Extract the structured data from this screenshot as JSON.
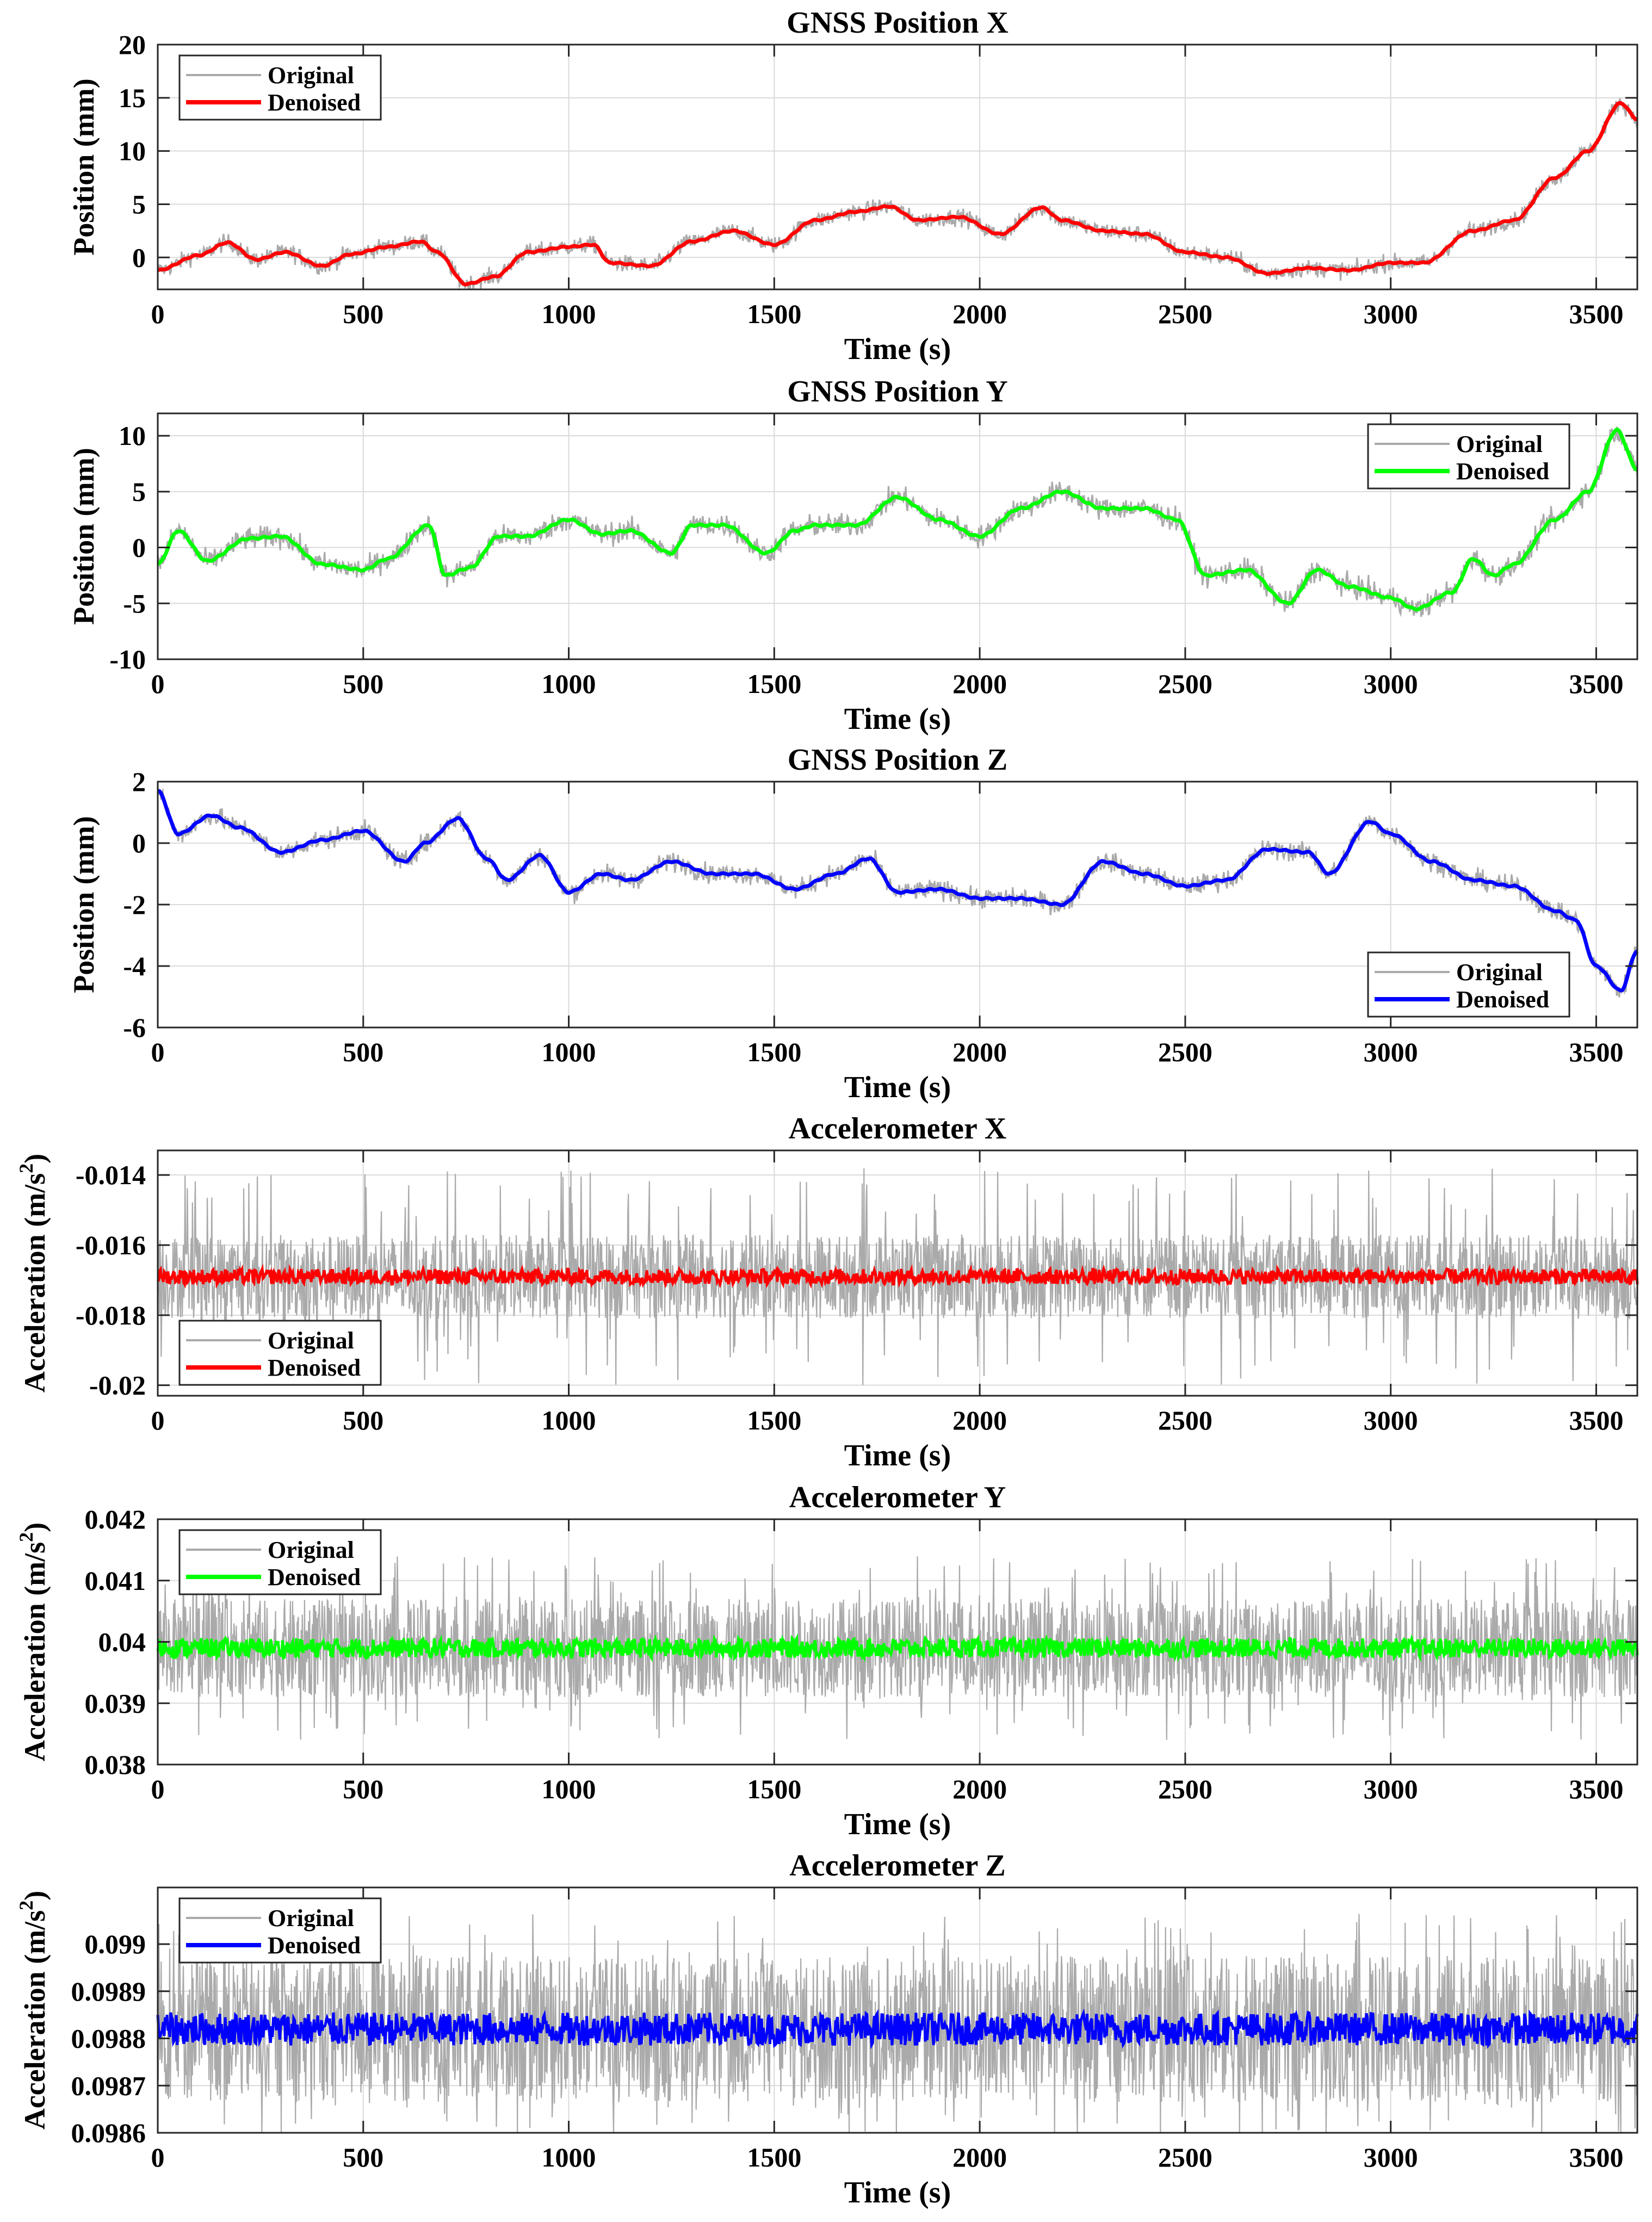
{
  "chart_data": [
    {
      "type": "line",
      "title": "GNSS Position X",
      "xlabel": "Time (s)",
      "ylabel": "Position (mm)",
      "ylabel_sup": "",
      "ylabel_tail": "",
      "xlim": [
        0,
        3600
      ],
      "ylim": [
        -3,
        20
      ],
      "xticks": [
        0,
        500,
        1000,
        1500,
        2000,
        2500,
        3000,
        3500
      ],
      "xtick_labels": [
        "0",
        "500",
        "1000",
        "1500",
        "2000",
        "2500",
        "3000",
        "3500"
      ],
      "yticks": [
        0,
        5,
        10,
        15,
        20
      ],
      "ytick_labels": [
        "0",
        "5",
        "10",
        "15",
        "20"
      ],
      "grid": true,
      "legend": "top-left",
      "kind": "position",
      "noise": 0.7,
      "series": [
        {
          "name": "Original",
          "color": "#aaaaaa",
          "x": [
            0,
            100,
            170,
            240,
            310,
            400,
            470,
            560,
            640,
            680,
            750,
            820,
            900,
            1000,
            1060,
            1100,
            1200,
            1300,
            1400,
            1500,
            1600,
            1700,
            1780,
            1850,
            1950,
            2050,
            2150,
            2200,
            2300,
            2400,
            2500,
            2600,
            2700,
            2800,
            2900,
            3000,
            3080,
            3200,
            3300,
            3400,
            3480,
            3560,
            3600
          ],
          "y": [
            -1.2,
            0.2,
            1.4,
            -0.2,
            0.5,
            -0.8,
            0.3,
            1.0,
            1.5,
            0.5,
            -2.5,
            -1.8,
            0.5,
            1.0,
            1.2,
            -0.5,
            -0.8,
            1.5,
            2.5,
            1.2,
            3.5,
            4.3,
            4.8,
            3.5,
            3.8,
            2.2,
            4.7,
            3.5,
            2.5,
            2.2,
            0.5,
            0.0,
            -1.5,
            -1.0,
            -1.2,
            -0.5,
            -0.5,
            2.5,
            3.5,
            7.5,
            10.0,
            14.5,
            13.0
          ]
        },
        {
          "name": "Denoised",
          "color": "#ff0000",
          "smooth": true
        }
      ]
    },
    {
      "type": "line",
      "title": "GNSS Position Y",
      "xlabel": "Time (s)",
      "ylabel": "Position (mm)",
      "ylabel_sup": "",
      "ylabel_tail": "",
      "xlim": [
        0,
        3600
      ],
      "ylim": [
        -10,
        12
      ],
      "xticks": [
        0,
        500,
        1000,
        1500,
        2000,
        2500,
        3000,
        3500
      ],
      "xtick_labels": [
        "0",
        "500",
        "1000",
        "1500",
        "2000",
        "2500",
        "3000",
        "3500"
      ],
      "yticks": [
        -10,
        -5,
        0,
        5,
        10
      ],
      "ytick_labels": [
        "-10",
        "-5",
        "0",
        "5",
        "10"
      ],
      "grid": true,
      "legend": "top-right",
      "kind": "position",
      "noise": 0.9,
      "series": [
        {
          "name": "Original",
          "color": "#aaaaaa",
          "x": [
            0,
            50,
            120,
            220,
            300,
            400,
            500,
            560,
            660,
            700,
            760,
            830,
            900,
            1000,
            1080,
            1150,
            1250,
            1300,
            1380,
            1480,
            1550,
            1600,
            1700,
            1800,
            1900,
            2000,
            2100,
            2200,
            2300,
            2400,
            2480,
            2550,
            2650,
            2750,
            2820,
            2900,
            3000,
            3060,
            3150,
            3200,
            3250,
            3300,
            3400,
            3480,
            3550,
            3600
          ],
          "y": [
            -1.5,
            1.5,
            -1.2,
            0.8,
            1.0,
            -1.5,
            -2.0,
            -1.0,
            2.0,
            -2.5,
            -1.8,
            1.0,
            1.0,
            2.5,
            1.2,
            1.5,
            -0.5,
            2.0,
            2.0,
            -0.5,
            1.5,
            2.0,
            2.0,
            4.5,
            2.5,
            1.0,
            3.5,
            5.0,
            3.5,
            3.5,
            2.5,
            -2.5,
            -2.0,
            -5.0,
            -2.0,
            -3.5,
            -4.5,
            -5.5,
            -4.0,
            -1.0,
            -2.5,
            -1.5,
            2.5,
            5.0,
            10.5,
            7.0
          ]
        },
        {
          "name": "Denoised",
          "color": "#00ff00",
          "smooth": true
        }
      ]
    },
    {
      "type": "line",
      "title": "GNSS Position Z",
      "xlabel": "Time (s)",
      "ylabel": "Position (mm)",
      "ylabel_sup": "",
      "ylabel_tail": "",
      "xlim": [
        0,
        3600
      ],
      "ylim": [
        -6,
        2
      ],
      "xticks": [
        0,
        500,
        1000,
        1500,
        2000,
        2500,
        3000,
        3500
      ],
      "xtick_labels": [
        "0",
        "500",
        "1000",
        "1500",
        "2000",
        "2500",
        "3000",
        "3500"
      ],
      "yticks": [
        -6,
        -4,
        -2,
        0,
        2
      ],
      "ytick_labels": [
        "-6",
        "-4",
        "-2",
        "0",
        "2"
      ],
      "grid": true,
      "legend": "bottom-right",
      "kind": "position",
      "noise": 0.28,
      "series": [
        {
          "name": "Original",
          "color": "#aaaaaa",
          "x": [
            0,
            50,
            130,
            200,
            300,
            400,
            500,
            600,
            650,
            730,
            800,
            850,
            930,
            1000,
            1080,
            1150,
            1250,
            1350,
            1450,
            1550,
            1650,
            1730,
            1800,
            1900,
            2000,
            2100,
            2200,
            2300,
            2400,
            2500,
            2600,
            2700,
            2800,
            2850,
            2950,
            3000,
            3100,
            3200,
            3300,
            3400,
            3450,
            3500,
            3560,
            3600
          ],
          "y": [
            1.7,
            0.3,
            0.9,
            0.5,
            -0.3,
            0.1,
            0.4,
            -0.6,
            0.0,
            0.8,
            -0.5,
            -1.2,
            -0.4,
            -1.6,
            -1.0,
            -1.2,
            -0.6,
            -1.0,
            -1.0,
            -1.5,
            -1.0,
            -0.5,
            -1.6,
            -1.5,
            -1.8,
            -1.8,
            -2.0,
            -0.6,
            -1.0,
            -1.4,
            -1.2,
            -0.2,
            -0.3,
            -1.0,
            0.7,
            0.3,
            -0.6,
            -1.2,
            -1.4,
            -2.2,
            -2.5,
            -4.0,
            -4.8,
            -3.5
          ]
        },
        {
          "name": "Denoised",
          "color": "#0000ff",
          "smooth": true
        }
      ]
    },
    {
      "type": "line",
      "title": "Accelerometer X",
      "xlabel": "Time (s)",
      "ylabel": "Acceleration (m/s",
      "ylabel_sup": "2",
      "ylabel_tail": ")",
      "xlim": [
        0,
        3600
      ],
      "ylim": [
        -0.0203,
        -0.0133
      ],
      "xticks": [
        0,
        500,
        1000,
        1500,
        2000,
        2500,
        3000,
        3500
      ],
      "xtick_labels": [
        "0",
        "500",
        "1000",
        "1500",
        "2000",
        "2500",
        "3000",
        "3500"
      ],
      "yticks": [
        -0.02,
        -0.018,
        -0.016,
        -0.014
      ],
      "ytick_labels": [
        "-0.02",
        "-0.018",
        "-0.016",
        "-0.014"
      ],
      "grid": true,
      "legend": "bottom-left",
      "kind": "noise",
      "series": [
        {
          "name": "Original",
          "color": "#aaaaaa",
          "mean": -0.0169,
          "core": 0.0012,
          "spike": 0.0031
        },
        {
          "name": "Denoised",
          "color": "#ff0000",
          "mean": -0.0169,
          "core": 0.00022
        }
      ]
    },
    {
      "type": "line",
      "title": "Accelerometer Y",
      "xlabel": "Time (s)",
      "ylabel": "Acceleration (m/s",
      "ylabel_sup": "2",
      "ylabel_tail": ")",
      "xlim": [
        0,
        3600
      ],
      "ylim": [
        0.038,
        0.042
      ],
      "xticks": [
        0,
        500,
        1000,
        1500,
        2000,
        2500,
        3000,
        3500
      ],
      "xtick_labels": [
        "0",
        "500",
        "1000",
        "1500",
        "2000",
        "2500",
        "3000",
        "3500"
      ],
      "yticks": [
        0.038,
        0.039,
        0.04,
        0.041,
        0.042
      ],
      "ytick_labels": [
        "0.038",
        "0.039",
        "0.04",
        "0.041",
        "0.042"
      ],
      "grid": true,
      "legend": "top-left",
      "kind": "noise",
      "series": [
        {
          "name": "Original",
          "color": "#aaaaaa",
          "mean": 0.0399,
          "core": 0.0008,
          "spike": 0.0015
        },
        {
          "name": "Denoised",
          "color": "#00ff00",
          "mean": 0.0399,
          "core": 0.00016
        }
      ]
    },
    {
      "type": "line",
      "title": "Accelerometer Z",
      "xlabel": "Time (s)",
      "ylabel": "Acceleration (m/s",
      "ylabel_sup": "2",
      "ylabel_tail": ")",
      "xlim": [
        0,
        3600
      ],
      "ylim": [
        0.0986,
        0.09912
      ],
      "xticks": [
        0,
        500,
        1000,
        1500,
        2000,
        2500,
        3000,
        3500
      ],
      "xtick_labels": [
        "0",
        "500",
        "1000",
        "1500",
        "2000",
        "2500",
        "3000",
        "3500"
      ],
      "yticks": [
        0.0986,
        0.0987,
        0.0988,
        0.0989,
        0.099
      ],
      "ytick_labels": [
        "0.0986",
        "0.0987",
        "0.0988",
        "0.0989",
        "0.099"
      ],
      "grid": true,
      "legend": "top-left",
      "kind": "noise",
      "series": [
        {
          "name": "Original",
          "color": "#aaaaaa",
          "mean": 0.09882,
          "core": 0.000155,
          "spike": 0.000245
        },
        {
          "name": "Denoised",
          "color": "#0000ff",
          "mean": 0.09882,
          "core": 3.5e-05
        }
      ]
    }
  ]
}
